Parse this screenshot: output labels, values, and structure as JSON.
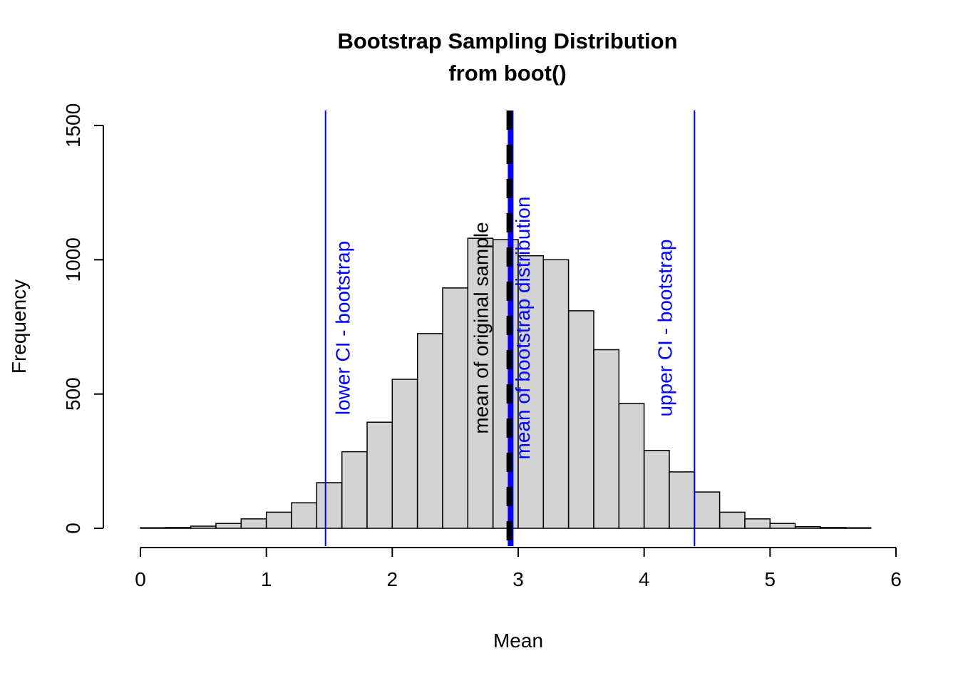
{
  "chart_data": {
    "type": "bar",
    "subtype": "histogram",
    "title_line1": "Bootstrap Sampling Distribution",
    "title_line2": "from boot()",
    "xlabel": "Mean",
    "ylabel": "Frequency",
    "xlim": [
      0,
      6
    ],
    "ylim": [
      0,
      1500
    ],
    "x_ticks": [
      0,
      1,
      2,
      3,
      4,
      5,
      6
    ],
    "y_ticks": [
      0,
      500,
      1000,
      1500
    ],
    "bin_start": 0.0,
    "bin_width": 0.2,
    "counts": [
      2,
      3,
      8,
      18,
      35,
      60,
      95,
      170,
      285,
      395,
      555,
      725,
      895,
      1080,
      1075,
      1015,
      1000,
      810,
      665,
      465,
      290,
      210,
      135,
      60,
      35,
      18,
      6,
      3,
      2
    ],
    "bar_fill": "#d3d3d3",
    "bar_stroke": "#000000",
    "accent_color": "#0000ff",
    "vlines": [
      {
        "x": 1.47,
        "color": "#0000ff",
        "width": 2,
        "dash": "",
        "label": "lower CI - bootstrap",
        "label_x": 1.66,
        "label_color": "#0000ff"
      },
      {
        "x": 4.4,
        "color": "#0000ff",
        "width": 2,
        "dash": "",
        "label": "upper CI - bootstrap",
        "label_x": 4.22,
        "label_color": "#0000ff"
      },
      {
        "x": 2.94,
        "color": "#0000ff",
        "width": 8,
        "dash": "",
        "label": "mean of bootstrap distribution",
        "label_x": 3.09,
        "label_color": "#0000ff"
      },
      {
        "x": 2.93,
        "color": "#000000",
        "width": 8,
        "dash": "27,21",
        "label": "mean of original sample",
        "label_x": 2.76,
        "label_color": "#000000"
      }
    ]
  }
}
